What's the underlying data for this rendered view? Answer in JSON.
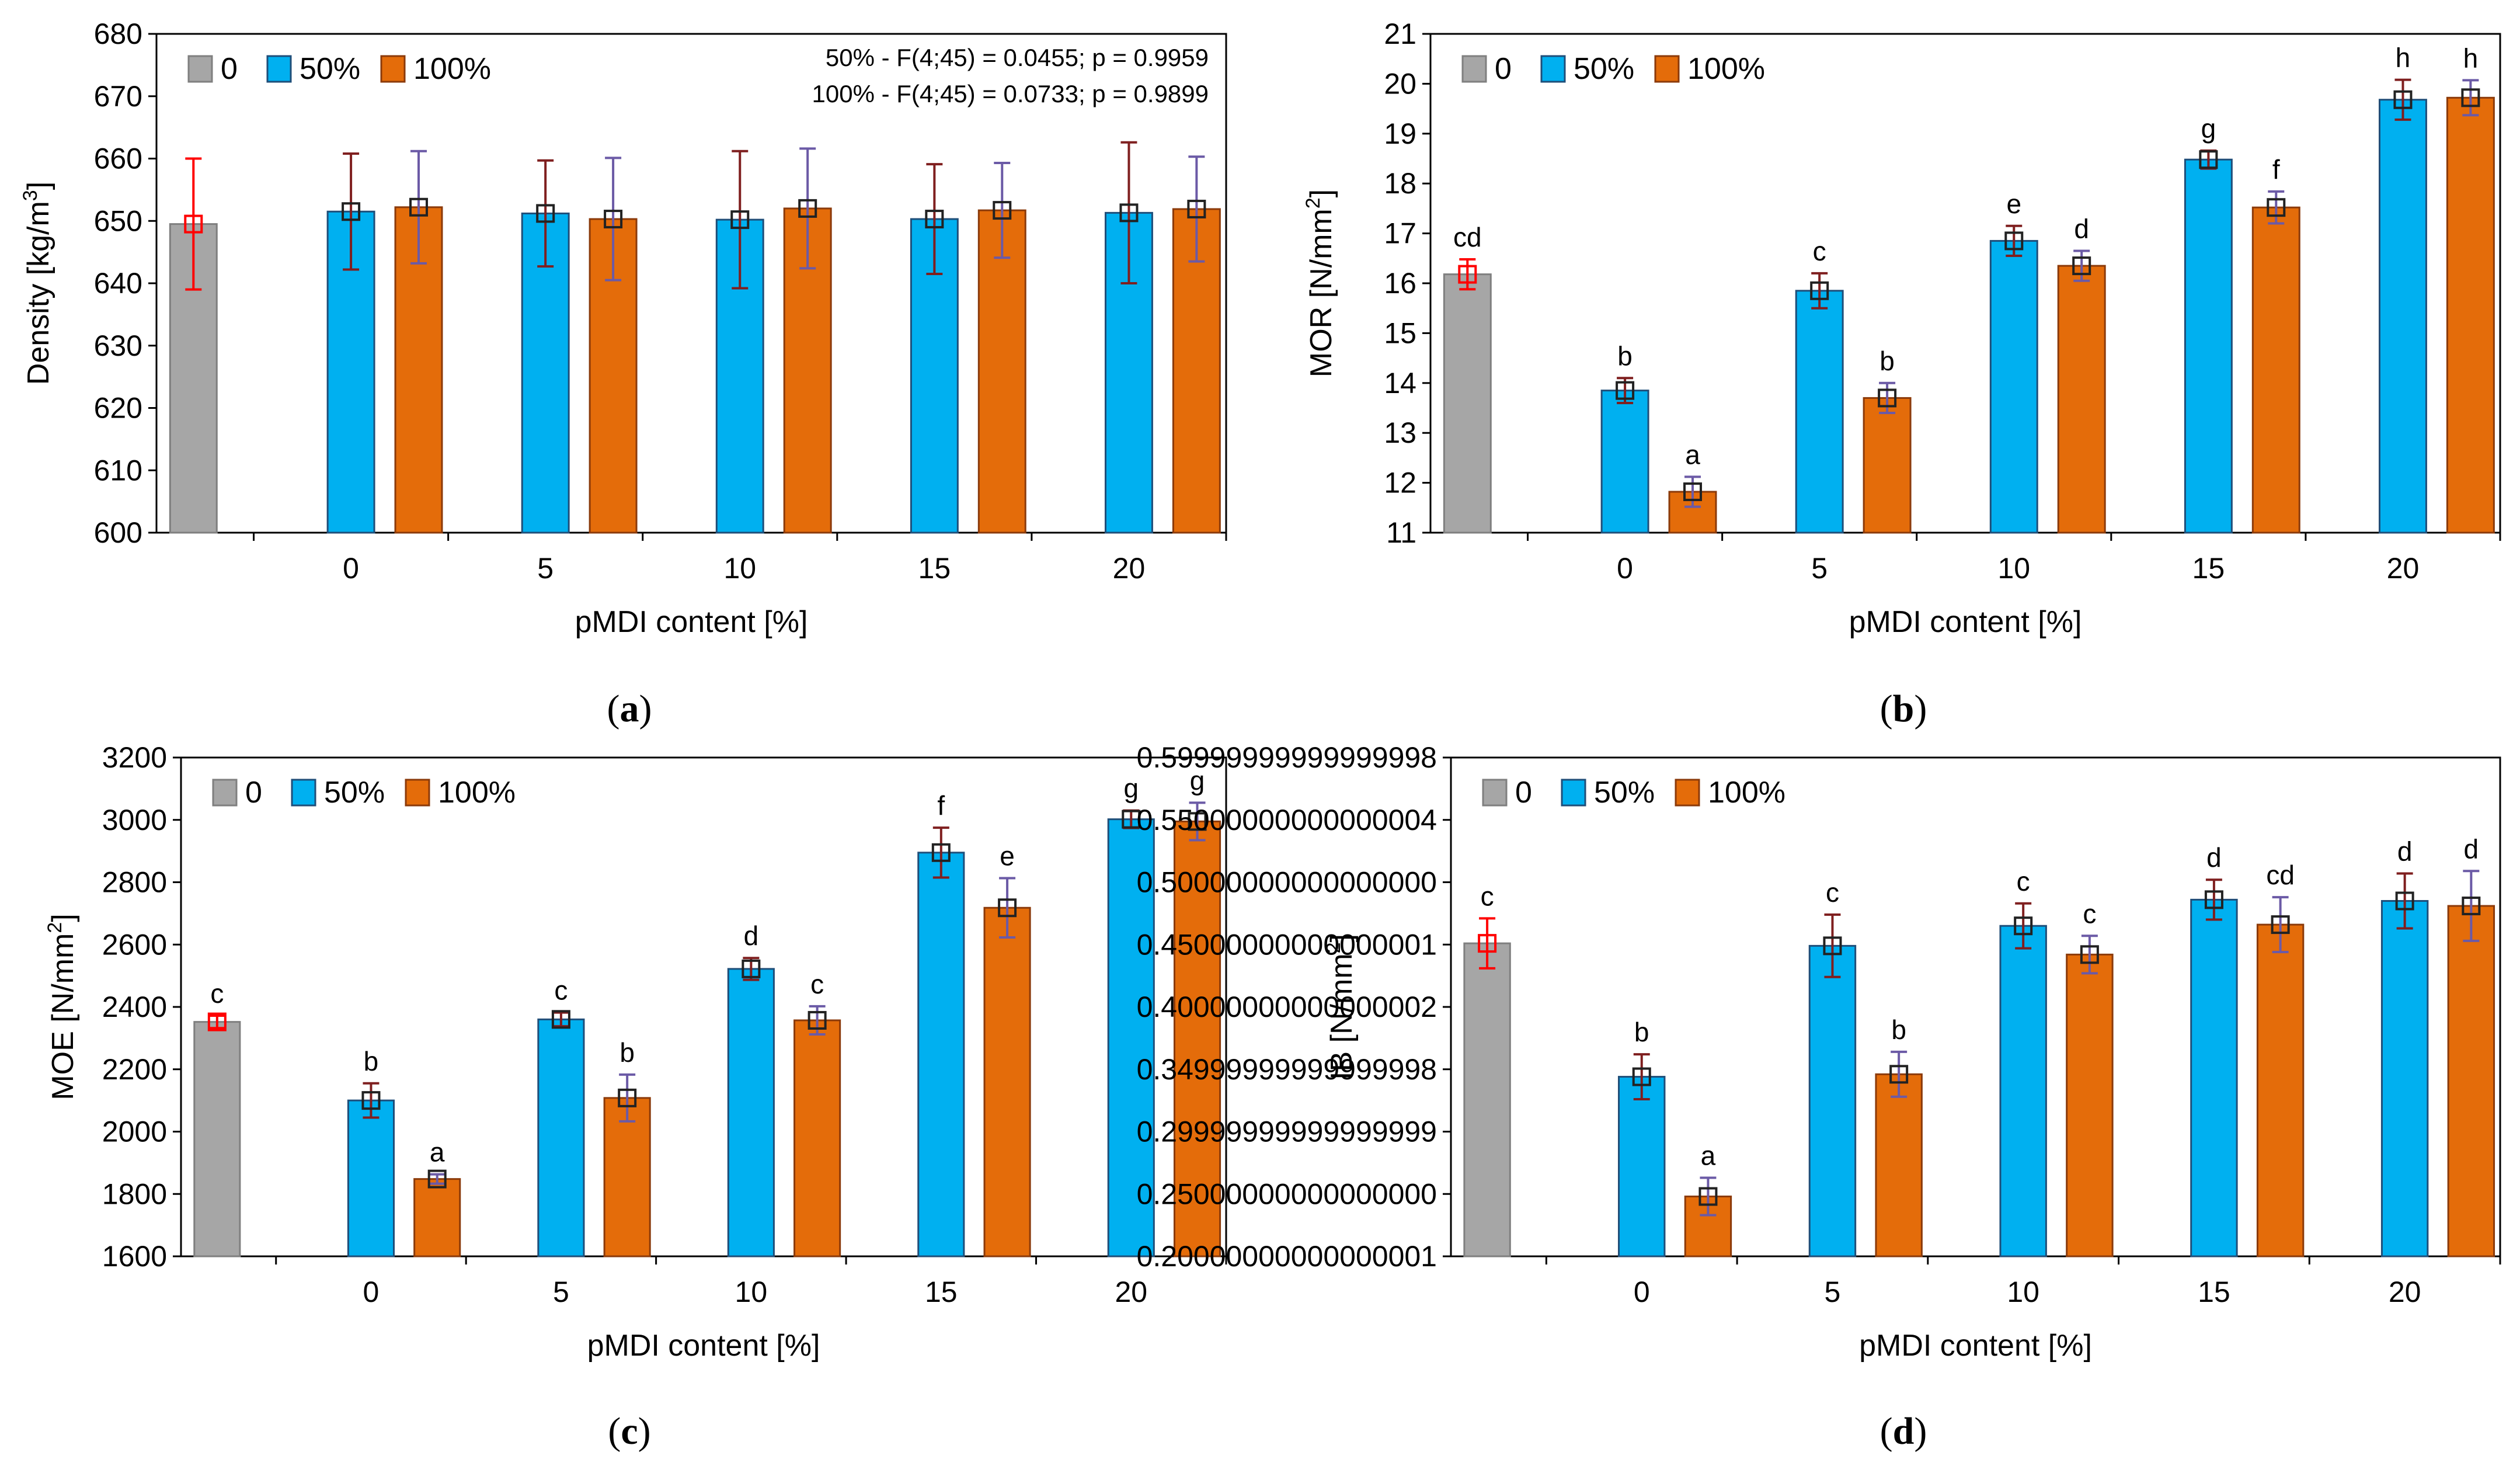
{
  "colors": {
    "control": "#a6a6a6",
    "half": "#00b0f0",
    "full": "#e46c0a",
    "red_err": "#ff0000",
    "dark_err": "#7f1f1f",
    "purple_err": "#6b5aa6"
  },
  "chart_data": [
    {
      "id": "a",
      "type": "bar",
      "caption_letter": "a",
      "ylabel_main": "Density [kg/m",
      "ylabel_sup": "3",
      "ylabel_tail": "]",
      "xlabel": "pMDI content [%]",
      "categories": [
        "0",
        "5",
        "10",
        "15",
        "20"
      ],
      "ylim": [
        600,
        680
      ],
      "yticks": [
        600,
        610,
        620,
        630,
        640,
        650,
        660,
        670,
        680
      ],
      "legend": [
        "0",
        "50%",
        "100%"
      ],
      "control": {
        "value": 649.5,
        "err": 10.5,
        "label": ""
      },
      "series": [
        {
          "name": "50%",
          "values": [
            651.5,
            651.2,
            650.2,
            650.3,
            651.3
          ],
          "errors": [
            9.3,
            8.5,
            11.0,
            8.8,
            11.3
          ],
          "labels": [
            "",
            "",
            "",
            "",
            ""
          ]
        },
        {
          "name": "100%",
          "values": [
            652.2,
            650.3,
            652.0,
            651.7,
            651.9
          ],
          "errors": [
            9.0,
            9.8,
            9.6,
            7.6,
            8.4
          ],
          "labels": [
            "",
            "",
            "",
            "",
            ""
          ]
        }
      ],
      "annotations": [
        "50% - F(4;45) = 0.0455; p = 0.9959",
        "100% - F(4;45) = 0.0733; p = 0.9899"
      ]
    },
    {
      "id": "b",
      "type": "bar",
      "caption_letter": "b",
      "ylabel_main": "MOR [N/mm",
      "ylabel_sup": "2",
      "ylabel_tail": "]",
      "xlabel": "pMDI content [%]",
      "categories": [
        "0",
        "5",
        "10",
        "15",
        "20"
      ],
      "ylim": [
        11,
        21
      ],
      "yticks": [
        11,
        12,
        13,
        14,
        15,
        16,
        17,
        18,
        19,
        20,
        21
      ],
      "legend": [
        "0",
        "50%",
        "100%"
      ],
      "control": {
        "value": 16.18,
        "err": 0.3,
        "label": "cd"
      },
      "series": [
        {
          "name": "50%",
          "values": [
            13.85,
            15.85,
            16.85,
            18.48,
            19.68
          ],
          "errors": [
            0.25,
            0.35,
            0.3,
            0.18,
            0.4
          ],
          "labels": [
            "b",
            "c",
            "e",
            "g",
            "h"
          ]
        },
        {
          "name": "100%",
          "values": [
            11.82,
            13.7,
            16.35,
            17.52,
            19.72
          ],
          "errors": [
            0.3,
            0.3,
            0.3,
            0.32,
            0.35
          ],
          "labels": [
            "a",
            "b",
            "d",
            "f",
            "h"
          ]
        }
      ],
      "annotations": []
    },
    {
      "id": "c",
      "type": "bar",
      "caption_letter": "c",
      "ylabel_main": "MOE [N/mm",
      "ylabel_sup": "2",
      "ylabel_tail": "]",
      "xlabel": "pMDI content [%]",
      "categories": [
        "0",
        "5",
        "10",
        "15",
        "20"
      ],
      "ylim": [
        1600,
        3200
      ],
      "yticks": [
        1600,
        1800,
        2000,
        2200,
        2400,
        2600,
        2800,
        3000,
        3200
      ],
      "legend": [
        "0",
        "50%",
        "100%"
      ],
      "control": {
        "value": 2352,
        "err": 20,
        "label": "c"
      },
      "series": [
        {
          "name": "50%",
          "values": [
            2100,
            2360,
            2522,
            2895,
            3002
          ],
          "errors": [
            55,
            22,
            35,
            80,
            28
          ],
          "labels": [
            "b",
            "c",
            "d",
            "f",
            "g"
          ]
        },
        {
          "name": "100%",
          "values": [
            1848,
            2108,
            2357,
            2718,
            2995
          ],
          "errors": [
            15,
            75,
            45,
            95,
            60
          ],
          "labels": [
            "a",
            "b",
            "c",
            "e",
            "g"
          ]
        }
      ],
      "annotations": []
    },
    {
      "id": "d",
      "type": "bar",
      "caption_letter": "d",
      "ylabel_main": "IB [N/mm",
      "ylabel_sup": "2",
      "ylabel_tail": "]",
      "xlabel": "pMDI content [%]",
      "categories": [
        "0",
        "5",
        "10",
        "15",
        "20"
      ],
      "ylim": [
        0.2,
        0.6
      ],
      "yticks": [
        0.2,
        0.25,
        0.3,
        0.35,
        0.4,
        0.45,
        0.5,
        0.55,
        0.6
      ],
      "legend": [
        "0",
        "50%",
        "100%"
      ],
      "control": {
        "value": 0.451,
        "err": 0.02,
        "label": "c"
      },
      "series": [
        {
          "name": "50%",
          "values": [
            0.344,
            0.449,
            0.465,
            0.486,
            0.485
          ],
          "errors": [
            0.018,
            0.025,
            0.018,
            0.016,
            0.022
          ],
          "labels": [
            "b",
            "c",
            "c",
            "d",
            "d"
          ]
        },
        {
          "name": "100%",
          "values": [
            0.248,
            0.346,
            0.442,
            0.466,
            0.481
          ],
          "errors": [
            0.015,
            0.018,
            0.015,
            0.022,
            0.028
          ],
          "labels": [
            "a",
            "b",
            "c",
            "cd",
            "d"
          ]
        }
      ],
      "annotations": []
    }
  ]
}
